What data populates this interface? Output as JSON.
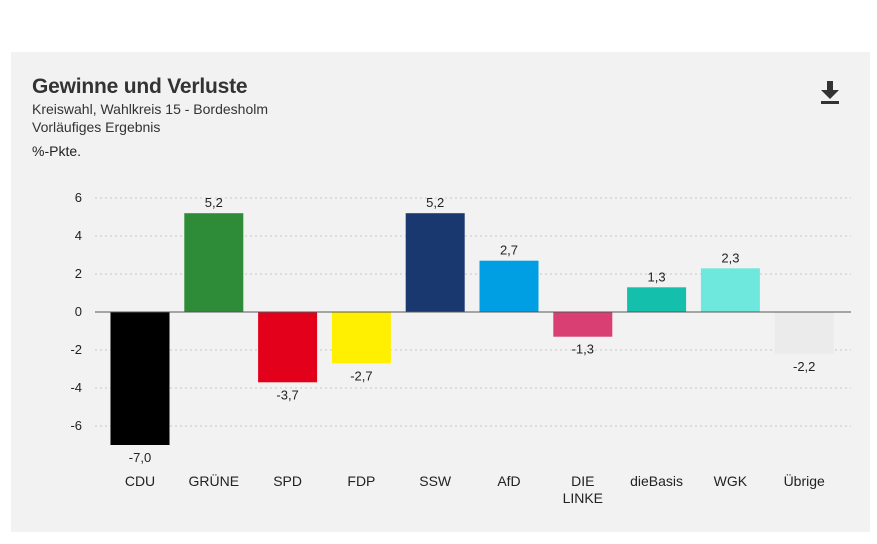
{
  "chart_data": {
    "type": "bar",
    "title": "Gewinne und Verluste",
    "subtitle": "Kreiswahl, Wahlkreis 15 - Bordesholm",
    "subtitle2": "Vorläufiges Ergebnis",
    "ylabel": "%-Pkte.",
    "ylim": [
      -7,
      6
    ],
    "yticks": [
      6,
      4,
      2,
      0,
      -2,
      -4,
      -6
    ],
    "ytick_labels": [
      "6",
      "4",
      "2",
      "0",
      "-2",
      "-4",
      "-6"
    ],
    "grid": true,
    "categories": [
      [
        "CDU"
      ],
      [
        "GRÜNE"
      ],
      [
        "SPD"
      ],
      [
        "FDP"
      ],
      [
        "SSW"
      ],
      [
        "AfD"
      ],
      [
        "DIE",
        "LINKE"
      ],
      [
        "dieBasis"
      ],
      [
        "WGK"
      ],
      [
        "Übrige"
      ]
    ],
    "values": [
      -7.0,
      5.2,
      -3.7,
      -2.7,
      5.2,
      2.7,
      -1.3,
      1.3,
      2.3,
      -2.2
    ],
    "value_labels": [
      "-7,0",
      "5,2",
      "-3,7",
      "-2,7",
      "5,2",
      "2,7",
      "-1,3",
      "1,3",
      "2,3",
      "-2,2"
    ],
    "colors": [
      "#000000",
      "#2e8b38",
      "#e3001b",
      "#ffef00",
      "#1a3870",
      "#009fe3",
      "#d93f72",
      "#14bfab",
      "#6ee8dc",
      "#ebebeb"
    ]
  },
  "toolbar": {
    "download_icon": "download-icon"
  }
}
